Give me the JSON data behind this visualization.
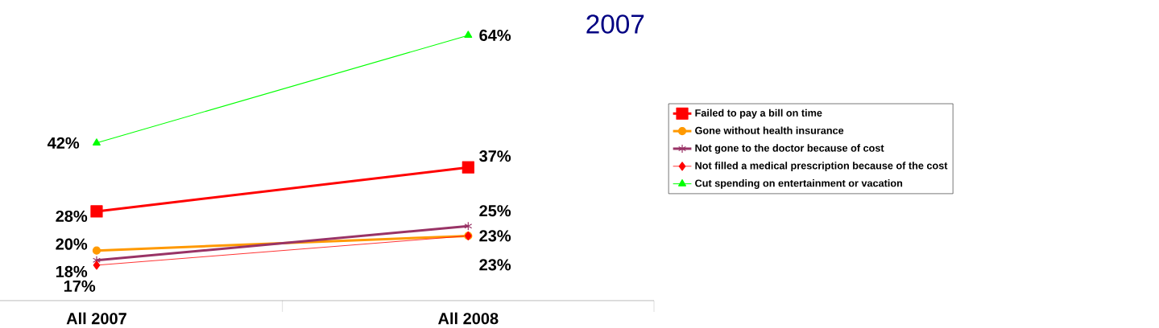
{
  "chart_data": {
    "type": "line",
    "title": "2007",
    "categories": [
      "All 2007",
      "All 2008"
    ],
    "tick_labels": "x",
    "legend": "right",
    "series": [
      {
        "name": "Failed to pay a bill on time",
        "color": "#ff0000",
        "marker": "square",
        "values": [
          28,
          37
        ],
        "value_labels": [
          "28%",
          "37%"
        ]
      },
      {
        "name": "Gone without health insurance",
        "color": "#ff9900",
        "marker": "circle",
        "values": [
          20,
          23
        ],
        "value_labels": [
          "20%",
          "23%"
        ]
      },
      {
        "name": "Not gone to the doctor because of cost",
        "color": "#993366",
        "marker": "cross",
        "values": [
          18,
          25
        ],
        "value_labels": [
          "18%",
          "25%"
        ]
      },
      {
        "name": "Not filled a medical prescription because of the cost",
        "color": "#ff0000",
        "marker": "diamond",
        "values": [
          17,
          23
        ],
        "value_labels": [
          "17%",
          "23%"
        ]
      },
      {
        "name": "Cut spending on entertainment or vacation",
        "color": "#00ff00",
        "marker": "triangle",
        "values": [
          42,
          64
        ],
        "value_labels": [
          "42%",
          "64%"
        ]
      }
    ]
  }
}
